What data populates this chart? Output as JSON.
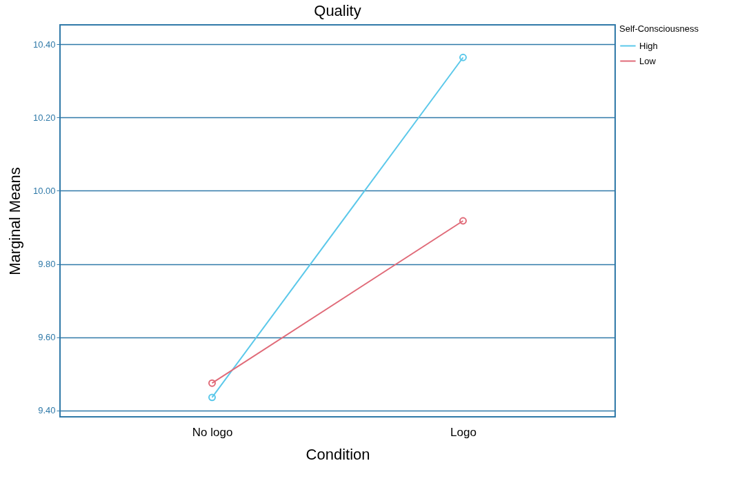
{
  "chart_data": {
    "type": "line",
    "title": "Quality",
    "xlabel": "Condition",
    "ylabel": "Marginal Means",
    "legend_title": "Self-Consciousness",
    "categories": [
      "No logo",
      "Logo"
    ],
    "series": [
      {
        "name": "High",
        "color": "#5bc8ea",
        "values": [
          9.436,
          10.364
        ]
      },
      {
        "name": "Low",
        "color": "#e06a78",
        "values": [
          9.475,
          9.918
        ]
      }
    ],
    "ylim": [
      9.383,
      10.453
    ],
    "yticks": [
      {
        "value": 9.4,
        "label": "9.40"
      },
      {
        "value": 9.6,
        "label": "9.60"
      },
      {
        "value": 9.8,
        "label": "9.80"
      },
      {
        "value": 10.0,
        "label": "10.00"
      },
      {
        "value": 10.2,
        "label": "10.20"
      },
      {
        "value": 10.4,
        "label": "10.40"
      }
    ],
    "grid": "y",
    "legend": "top right",
    "marker": "circle",
    "line_style": "solid"
  }
}
